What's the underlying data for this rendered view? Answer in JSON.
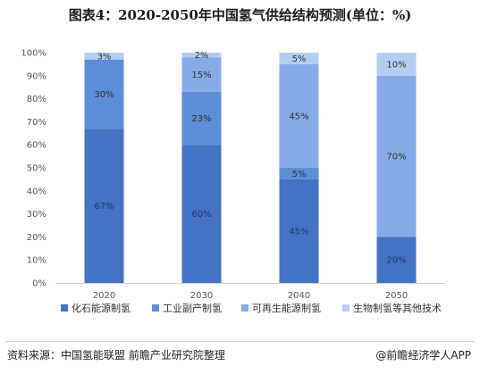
{
  "title": "图表4：2020-2050年中国氢气供给结构预测(单位：%)",
  "source": "资料来源：中国氢能联盟 前瞻产业研究院整理",
  "brand": "@前瞻经济学人APP",
  "chart_data": {
    "type": "bar",
    "stacked": true,
    "categories": [
      "2020",
      "2030",
      "2040",
      "2050"
    ],
    "series": [
      {
        "name": "化石能源制氢",
        "values": [
          67,
          60,
          45,
          20
        ],
        "labels": [
          "67%",
          "60%",
          "45%",
          "20%"
        ],
        "color": "#4472C4"
      },
      {
        "name": "工业副产制氢",
        "values": [
          30,
          23,
          5,
          0
        ],
        "labels": [
          "30%",
          "23%",
          "5%",
          ""
        ],
        "color": "#5B8ED6"
      },
      {
        "name": "可再生能源制氢",
        "values": [
          0,
          15,
          45,
          70
        ],
        "labels": [
          "",
          "15%",
          "45%",
          "70%"
        ],
        "color": "#86ABE6"
      },
      {
        "name": "生物制氢等其他技术",
        "values": [
          3,
          2,
          5,
          10
        ],
        "labels": [
          "3%",
          "2%",
          "5%",
          "10%"
        ],
        "color": "#B4CDF2"
      }
    ],
    "y_ticks": [
      "0%",
      "10%",
      "20%",
      "30%",
      "40%",
      "50%",
      "60%",
      "70%",
      "80%",
      "90%",
      "100%"
    ],
    "ylim": [
      0,
      100
    ],
    "legend_position": "bottom",
    "grid": false
  }
}
